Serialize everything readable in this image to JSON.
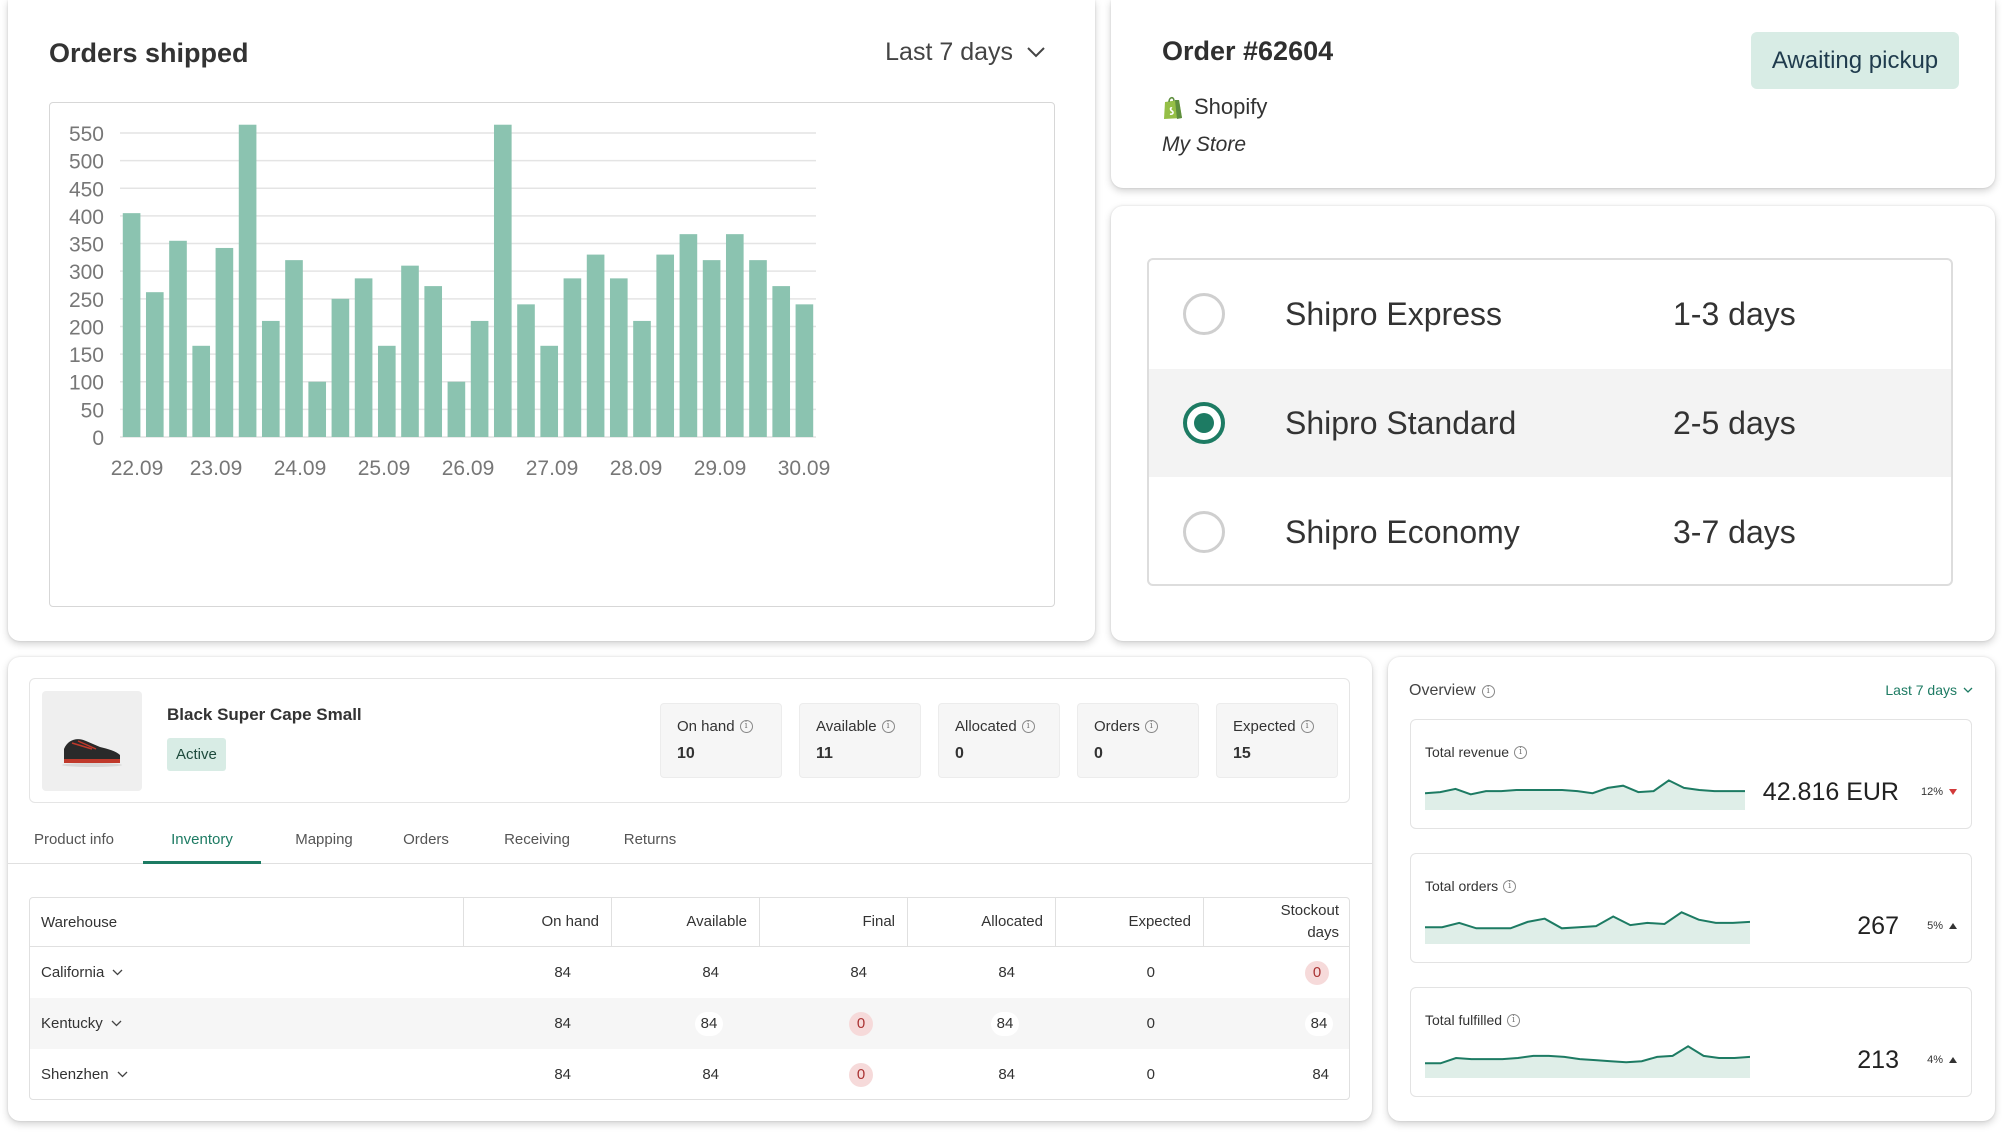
{
  "orders_card": {
    "title": "Orders shipped",
    "range_label": "Last 7 days"
  },
  "chart_data": {
    "type": "bar",
    "title": "Orders shipped",
    "xlabel": "",
    "ylabel": "",
    "ylim": [
      0,
      550
    ],
    "yticks": [
      0,
      50,
      100,
      150,
      200,
      250,
      300,
      350,
      400,
      450,
      500,
      550
    ],
    "xtick_labels": [
      "22.09",
      "23.09",
      "24.09",
      "25.09",
      "26.09",
      "27.09",
      "28.09",
      "29.09",
      "30.09"
    ],
    "values": [
      405,
      262,
      355,
      165,
      342,
      565,
      210,
      320,
      100,
      250,
      287,
      165,
      310,
      273,
      100,
      210,
      565,
      240,
      165,
      287,
      330,
      287,
      210,
      330,
      367,
      320,
      367,
      320,
      273,
      240
    ],
    "bar_color": "#8bc3b0",
    "grid": true
  },
  "order": {
    "title": "Order #62604",
    "status": "Awaiting pickup",
    "platform": "Shopify",
    "store": "My Store",
    "platform_icon": "shopify-bag-icon"
  },
  "shipping": {
    "options": [
      {
        "name": "Shipro Express",
        "days": "1-3 days",
        "selected": false
      },
      {
        "name": "Shipro Standard",
        "days": "2-5 days",
        "selected": true
      },
      {
        "name": "Shipro Economy",
        "days": "3-7 days",
        "selected": false
      }
    ],
    "accent": "#1d7b63"
  },
  "product": {
    "name": "Black Super Cape Small",
    "status": "Active",
    "stats": [
      {
        "label": "On hand",
        "value": "10"
      },
      {
        "label": "Available",
        "value": "11"
      },
      {
        "label": "Allocated",
        "value": "0"
      },
      {
        "label": "Orders",
        "value": "0"
      },
      {
        "label": "Expected",
        "value": "15"
      }
    ]
  },
  "tabs": [
    "Product info",
    "Inventory",
    "Mapping",
    "Orders",
    "Receiving",
    "Returns"
  ],
  "active_tab": "Inventory",
  "inventory": {
    "headers": [
      "Warehouse",
      "On hand",
      "Available",
      "Final",
      "Allocated",
      "Expected",
      "Stockout days"
    ],
    "rows": [
      {
        "warehouse": "California",
        "on_hand": "84",
        "available": "84",
        "final": "84",
        "allocated": "84",
        "expected": "0",
        "stockout": "0"
      },
      {
        "warehouse": "Kentucky",
        "on_hand": "84",
        "available": "84",
        "final": "0",
        "allocated": "84",
        "expected": "0",
        "stockout": "84"
      },
      {
        "warehouse": "Shenzhen",
        "on_hand": "84",
        "available": "84",
        "final": "0",
        "allocated": "84",
        "expected": "0",
        "stockout": "84"
      }
    ]
  },
  "overview": {
    "title": "Overview",
    "range_label": "Last 7 days",
    "metrics": [
      {
        "label": "Total revenue",
        "value": "42.816 EUR",
        "change": "12%",
        "direction": "down",
        "spark": [
          12,
          13,
          16,
          11,
          14,
          14,
          15,
          15,
          15,
          15,
          14,
          12,
          17,
          19,
          13,
          14,
          24,
          17,
          15,
          14,
          14,
          14
        ]
      },
      {
        "label": "Total orders",
        "value": "267",
        "change": "5%",
        "direction": "up",
        "spark": [
          12,
          12,
          16,
          11,
          11,
          11,
          17,
          20,
          11,
          12,
          13,
          22,
          14,
          16,
          15,
          26,
          19,
          16,
          16,
          17
        ]
      },
      {
        "label": "Total fulfilled",
        "value": "213",
        "change": "4%",
        "direction": "up",
        "spark": [
          10,
          10,
          15,
          14,
          14,
          14,
          15,
          17,
          17,
          16,
          14,
          13,
          12,
          11,
          12,
          16,
          17,
          26,
          17,
          15,
          15,
          16
        ]
      }
    ],
    "colors": {
      "line": "#1d7b63",
      "up": "#333333",
      "down": "#d23a3a"
    }
  }
}
